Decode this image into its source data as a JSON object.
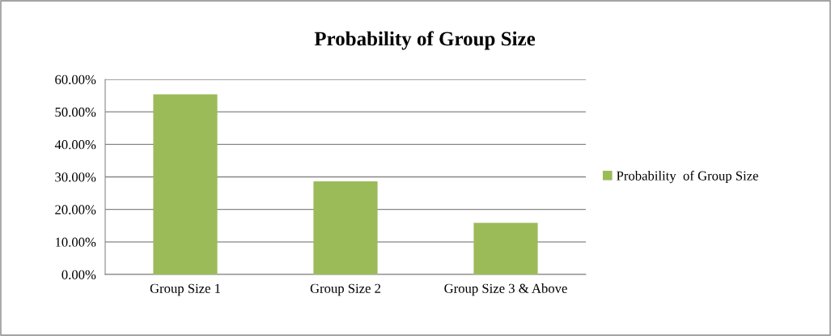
{
  "chart_data": {
    "type": "bar",
    "title": "Probability of Group Size",
    "categories": [
      "Group Size 1",
      "Group Size 2",
      "Group Size 3 & Above"
    ],
    "series": [
      {
        "name": "Probability  of Group Size",
        "color": "#9bbb59",
        "values": [
          55.4,
          28.6,
          15.9
        ]
      }
    ],
    "ylim": [
      0,
      60
    ],
    "yticks": [
      {
        "value": 0,
        "label": "0.00%"
      },
      {
        "value": 10,
        "label": "10.00%"
      },
      {
        "value": 20,
        "label": "20.00%"
      },
      {
        "value": 30,
        "label": "30.00%"
      },
      {
        "value": 40,
        "label": "40.00%"
      },
      {
        "value": 50,
        "label": "50.00%"
      },
      {
        "value": 60,
        "label": "60.00%"
      }
    ],
    "grid": "y",
    "legend": "right"
  }
}
